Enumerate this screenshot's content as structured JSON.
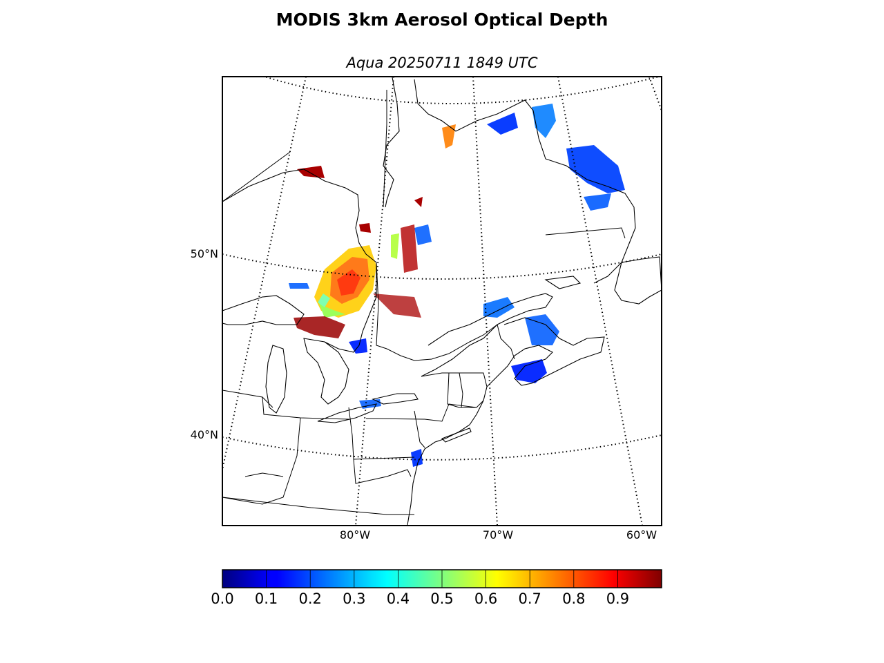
{
  "title": "MODIS 3km Aerosol Optical Depth",
  "subtitle": "Aqua 20250711 1849 UTC",
  "map": {
    "lat_labels": [
      "50°N",
      "40°N"
    ],
    "lon_labels": [
      "80°W",
      "70°W",
      "60°W"
    ]
  },
  "colorbar": {
    "colormap": "jet",
    "range": [
      0.0,
      1.0
    ],
    "tick_labels": [
      "0.0",
      "0.1",
      "0.2",
      "0.3",
      "0.4",
      "0.5",
      "0.6",
      "0.7",
      "0.8",
      "0.9"
    ]
  }
}
